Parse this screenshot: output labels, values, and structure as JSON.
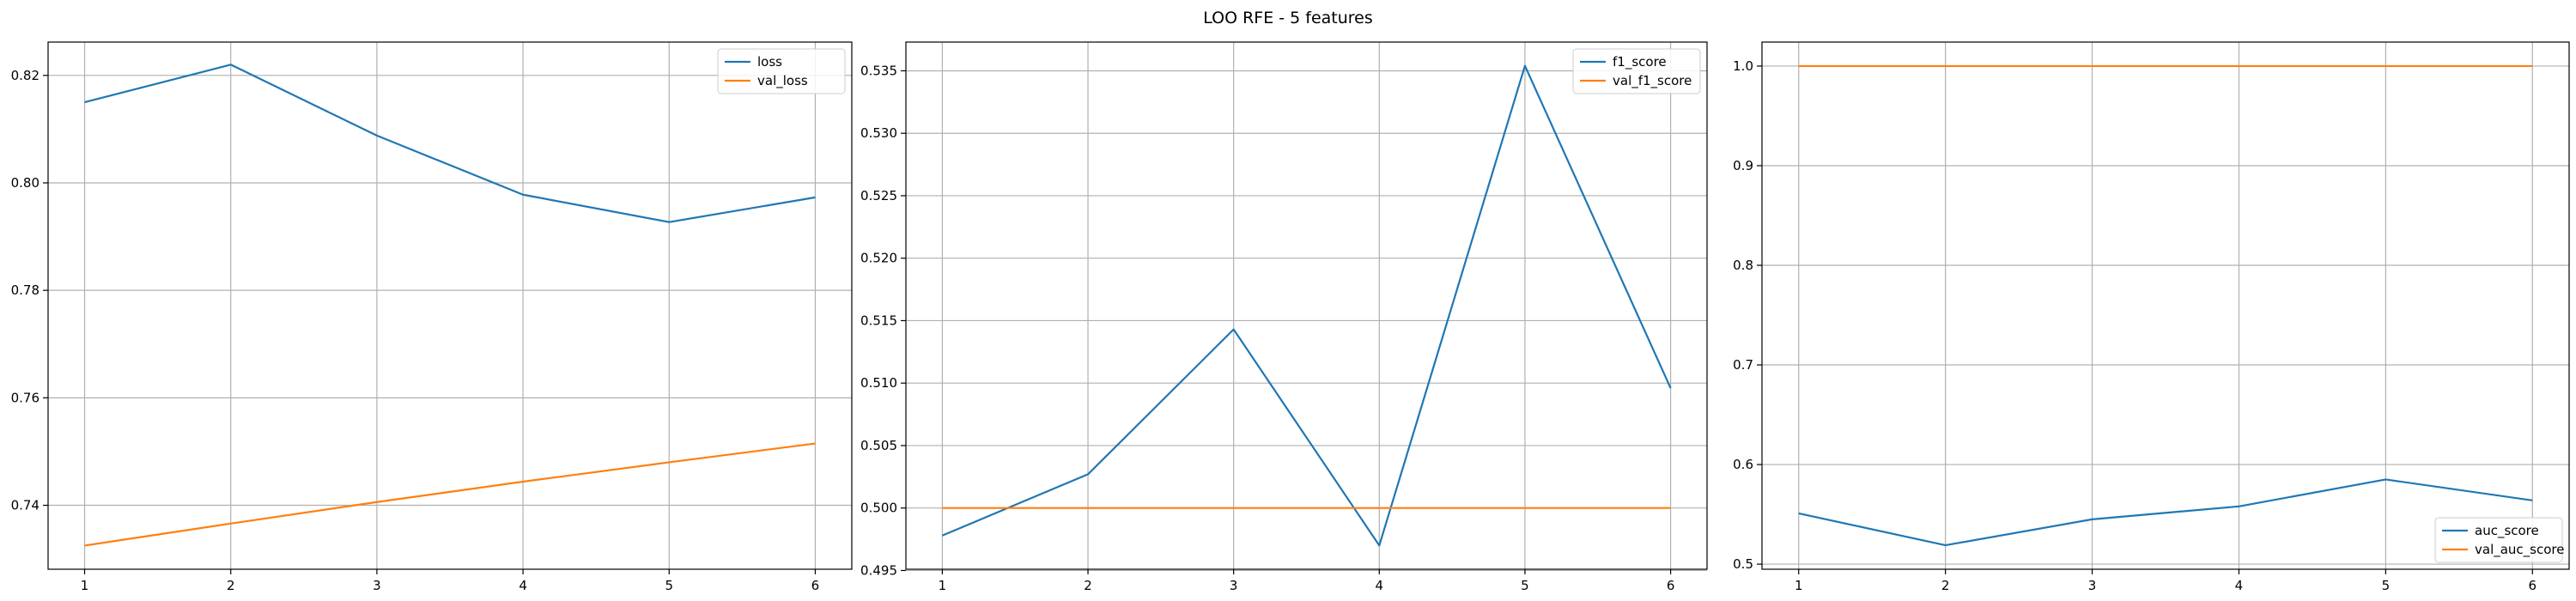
{
  "figure": {
    "title": "LOO RFE - 5 features"
  },
  "colors": {
    "train": "#1f77b4",
    "val": "#ff7f0e",
    "grid": "#b0b0b0",
    "axis": "#000000"
  },
  "chart_data": [
    {
      "type": "line",
      "title": "",
      "xlabel": "",
      "ylabel": "",
      "x": [
        1,
        2,
        3,
        4,
        5,
        6
      ],
      "xlim": [
        0.75,
        6.25
      ],
      "ylim": [
        0.7281,
        0.8262
      ],
      "xticks": [
        1,
        2,
        3,
        4,
        5,
        6
      ],
      "yticks": [
        0.74,
        0.76,
        0.78,
        0.8,
        0.82
      ],
      "ytick_labels": [
        "0.74",
        "0.76",
        "0.78",
        "0.80",
        "0.82"
      ],
      "grid": true,
      "legend_loc": "upper right",
      "series": [
        {
          "name": "loss",
          "color_key": "train",
          "values": [
            0.815,
            0.822,
            0.8088,
            0.7978,
            0.7927,
            0.7973
          ]
        },
        {
          "name": "val_loss",
          "color_key": "val",
          "values": [
            0.7325,
            0.7366,
            0.7406,
            0.7444,
            0.748,
            0.7515
          ]
        }
      ]
    },
    {
      "type": "line",
      "title": "",
      "xlabel": "",
      "ylabel": "",
      "x": [
        1,
        2,
        3,
        4,
        5,
        6
      ],
      "xlim": [
        0.75,
        6.25
      ],
      "ylim": [
        0.4951,
        0.5373
      ],
      "xticks": [
        1,
        2,
        3,
        4,
        5,
        6
      ],
      "yticks": [
        0.495,
        0.5,
        0.505,
        0.51,
        0.515,
        0.52,
        0.525,
        0.53,
        0.535
      ],
      "ytick_labels": [
        "0.495",
        "0.500",
        "0.505",
        "0.510",
        "0.515",
        "0.520",
        "0.525",
        "0.530",
        "0.535"
      ],
      "grid": true,
      "legend_loc": "upper right",
      "series": [
        {
          "name": "f1_score",
          "color_key": "train",
          "values": [
            0.4978,
            0.5027,
            0.5143,
            0.497,
            0.5354,
            0.5096
          ]
        },
        {
          "name": "val_f1_score",
          "color_key": "val",
          "values": [
            0.5,
            0.5,
            0.5,
            0.5,
            0.5,
            0.5
          ]
        }
      ]
    },
    {
      "type": "line",
      "title": "",
      "xlabel": "",
      "ylabel": "",
      "x": [
        1,
        2,
        3,
        4,
        5,
        6
      ],
      "xlim": [
        0.75,
        6.25
      ],
      "ylim": [
        0.4949,
        1.0241
      ],
      "xticks": [
        1,
        2,
        3,
        4,
        5,
        6
      ],
      "yticks": [
        0.5,
        0.6,
        0.7,
        0.8,
        0.9,
        1.0
      ],
      "ytick_labels": [
        "0.5",
        "0.6",
        "0.7",
        "0.8",
        "0.9",
        "1.0"
      ],
      "grid": true,
      "legend_loc": "lower right",
      "series": [
        {
          "name": "auc_score",
          "color_key": "train",
          "values": [
            0.551,
            0.519,
            0.545,
            0.558,
            0.585,
            0.564
          ]
        },
        {
          "name": "val_auc_score",
          "color_key": "val",
          "values": [
            1.0,
            1.0,
            1.0,
            1.0,
            1.0,
            1.0
          ]
        }
      ]
    }
  ]
}
